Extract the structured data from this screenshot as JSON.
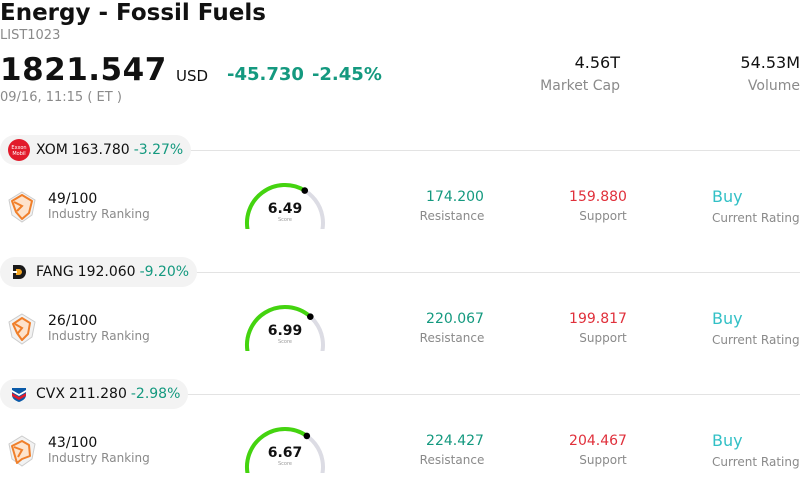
{
  "header": {
    "title": "Energy - Fossil Fuels",
    "code": "LIST1023",
    "price": "1821.547",
    "currency": "USD",
    "change": "-45.730",
    "change_pct": "-2.45%",
    "time": "09/16, 11:15  ( ET )",
    "market_cap_value": "4.56T",
    "market_cap_label": "Market Cap",
    "volume_value": "54.53M",
    "volume_label": "Volume"
  },
  "colors": {
    "positive": "#14997f",
    "support": "#e0303b",
    "rating": "#32c0c6",
    "gauge_fill": "#44d40f",
    "gauge_track": "#dcdce4"
  },
  "stocks": [
    {
      "logo_icon": "exxon-mobil-logo",
      "logo_text_1": "Exxon",
      "logo_text_2": "Mobil",
      "ticker": "XOM",
      "price": "163.780",
      "change_pct": "-3.27%",
      "rank_value": "49/100",
      "rank_label": "Industry Ranking",
      "score": "6.49",
      "score_value": 6.49,
      "score_label": "Score",
      "resistance_value": "174.200",
      "resistance_label": "Resistance",
      "support_value": "159.880",
      "support_label": "Support",
      "rating_value": "Buy",
      "rating_label": "Current Rating"
    },
    {
      "logo_icon": "diamondback-logo",
      "ticker": "FANG",
      "price": "192.060",
      "change_pct": "-9.20%",
      "rank_value": "26/100",
      "rank_label": "Industry Ranking",
      "score": "6.99",
      "score_value": 6.99,
      "score_label": "Score",
      "resistance_value": "220.067",
      "resistance_label": "Resistance",
      "support_value": "199.817",
      "support_label": "Support",
      "rating_value": "Buy",
      "rating_label": "Current Rating"
    },
    {
      "logo_icon": "chevron-logo",
      "ticker": "CVX",
      "price": "211.280",
      "change_pct": "-2.98%",
      "rank_value": "43/100",
      "rank_label": "Industry Ranking",
      "score": "6.67",
      "score_value": 6.67,
      "score_label": "Score",
      "resistance_value": "224.427",
      "resistance_label": "Resistance",
      "support_value": "204.467",
      "support_label": "Support",
      "rating_value": "Buy",
      "rating_label": "Current Rating"
    }
  ]
}
